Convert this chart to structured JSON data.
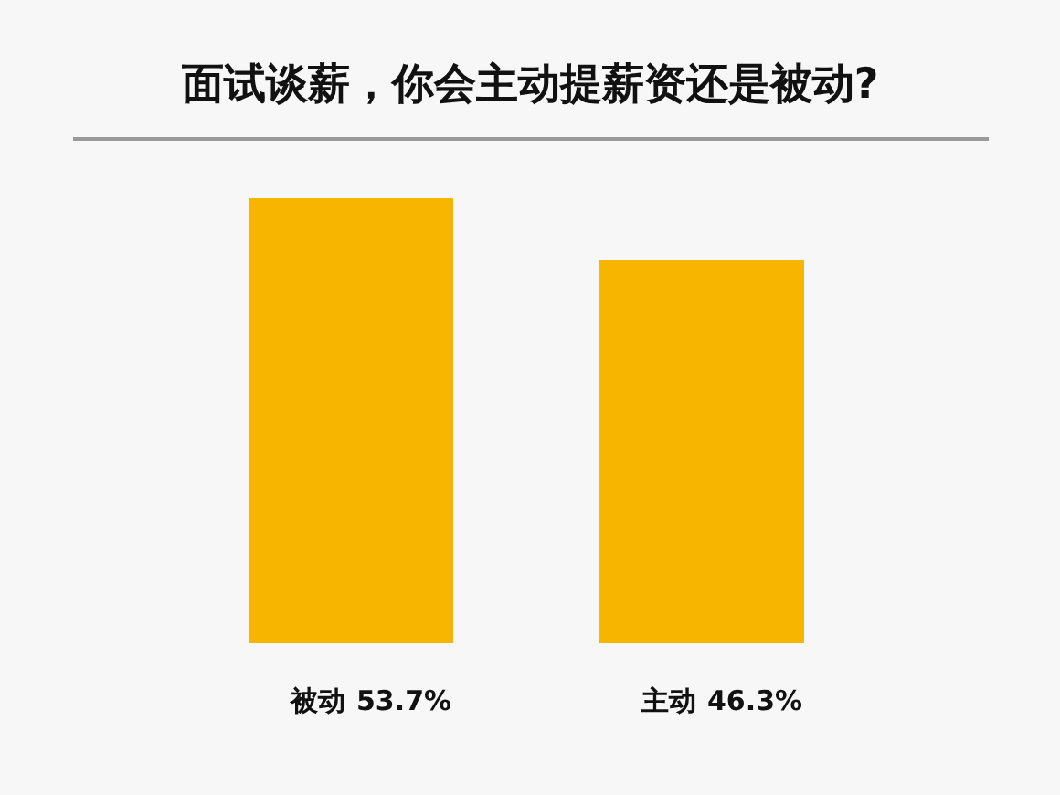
{
  "chart_data": {
    "type": "bar",
    "title": "面试谈薪，你会主动提薪资还是被动?",
    "categories": [
      "被动",
      "主动"
    ],
    "values": [
      53.7,
      46.3
    ],
    "color": "#f7b500",
    "value_labels": [
      "53.7%",
      "46.3%"
    ]
  }
}
